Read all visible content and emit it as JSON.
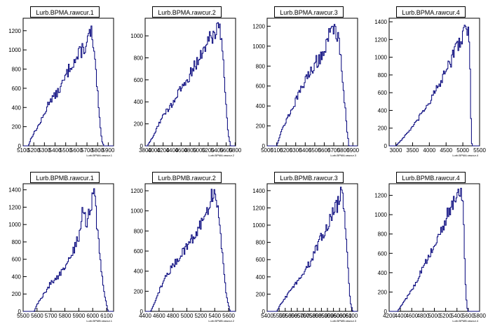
{
  "chart_data": [
    {
      "type": "histogram",
      "title": "Lurb.BPMA.rawcur.1",
      "xlabel": "Lurb.BPMA.rawcur.1",
      "xlim": [
        5100,
        5950
      ],
      "ylim": [
        0,
        1330
      ],
      "xticks": [
        5100,
        5200,
        5300,
        5400,
        5500,
        5600,
        5700,
        5800,
        5900
      ],
      "yticks": [
        0,
        200,
        400,
        600,
        800,
        1000,
        1200
      ],
      "profile": [
        [
          5150,
          0
        ],
        [
          5175,
          80
        ],
        [
          5200,
          130
        ],
        [
          5250,
          220
        ],
        [
          5300,
          330
        ],
        [
          5350,
          480
        ],
        [
          5400,
          520
        ],
        [
          5450,
          600
        ],
        [
          5500,
          720
        ],
        [
          5550,
          850
        ],
        [
          5600,
          900
        ],
        [
          5650,
          1000
        ],
        [
          5700,
          1050
        ],
        [
          5720,
          1150
        ],
        [
          5740,
          1200
        ],
        [
          5760,
          1000
        ],
        [
          5780,
          800
        ],
        [
          5800,
          550
        ],
        [
          5820,
          250
        ],
        [
          5840,
          50
        ],
        [
          5860,
          0
        ]
      ]
    },
    {
      "type": "histogram",
      "title": "Lurb.BPMA.rawcur.2",
      "xlabel": "Lurb.BPMA.rawcur.2",
      "xlim": [
        3800,
        5810
      ],
      "ylim": [
        0,
        1160
      ],
      "xticks": [
        3800,
        4000,
        4200,
        4400,
        4600,
        4800,
        5000,
        5200,
        5400,
        5600,
        5800
      ],
      "yticks": [
        0,
        200,
        400,
        600,
        800,
        1000
      ],
      "profile": [
        [
          3850,
          0
        ],
        [
          4000,
          100
        ],
        [
          4100,
          200
        ],
        [
          4200,
          270
        ],
        [
          4300,
          330
        ],
        [
          4400,
          380
        ],
        [
          4500,
          450
        ],
        [
          4600,
          520
        ],
        [
          4700,
          580
        ],
        [
          4800,
          650
        ],
        [
          4900,
          720
        ],
        [
          5000,
          800
        ],
        [
          5100,
          870
        ],
        [
          5200,
          950
        ],
        [
          5300,
          1010
        ],
        [
          5400,
          1060
        ],
        [
          5450,
          1080
        ],
        [
          5500,
          1000
        ],
        [
          5550,
          700
        ],
        [
          5600,
          350
        ],
        [
          5650,
          100
        ],
        [
          5700,
          0
        ]
      ]
    },
    {
      "type": "histogram",
      "title": "Lurb.BPMA.rawcur.3",
      "xlabel": "Lurb.BPMA.rawcur.3",
      "xlim": [
        5000,
        5950
      ],
      "ylim": [
        0,
        1280
      ],
      "xticks": [
        5000,
        5100,
        5200,
        5300,
        5400,
        5500,
        5600,
        5700,
        5800,
        5900
      ],
      "yticks": [
        0,
        200,
        400,
        600,
        800,
        1000,
        1200
      ],
      "profile": [
        [
          5100,
          0
        ],
        [
          5150,
          150
        ],
        [
          5200,
          250
        ],
        [
          5250,
          350
        ],
        [
          5300,
          450
        ],
        [
          5350,
          550
        ],
        [
          5400,
          650
        ],
        [
          5450,
          750
        ],
        [
          5500,
          820
        ],
        [
          5550,
          880
        ],
        [
          5600,
          950
        ],
        [
          5650,
          1100
        ],
        [
          5700,
          1180
        ],
        [
          5720,
          1150
        ],
        [
          5760,
          1050
        ],
        [
          5800,
          600
        ],
        [
          5840,
          150
        ],
        [
          5860,
          0
        ]
      ]
    },
    {
      "type": "histogram",
      "title": "Lurb.BPMA.rawcur.4",
      "xlabel": "Lurb.BPMA.rawcur.4",
      "xlim": [
        2800,
        5500
      ],
      "ylim": [
        0,
        1440
      ],
      "xticks": [
        3000,
        3500,
        4000,
        4500,
        5000,
        5500
      ],
      "yticks": [
        0,
        200,
        400,
        600,
        800,
        1000,
        1200,
        1400
      ],
      "profile": [
        [
          3000,
          0
        ],
        [
          3200,
          80
        ],
        [
          3400,
          170
        ],
        [
          3600,
          260
        ],
        [
          3800,
          380
        ],
        [
          4000,
          500
        ],
        [
          4200,
          620
        ],
        [
          4400,
          760
        ],
        [
          4600,
          920
        ],
        [
          4800,
          1100
        ],
        [
          5000,
          1260
        ],
        [
          5100,
          1330
        ],
        [
          5150,
          1340
        ],
        [
          5200,
          1200
        ],
        [
          5230,
          500
        ],
        [
          5260,
          50
        ],
        [
          5280,
          0
        ]
      ]
    },
    {
      "type": "histogram",
      "title": "Lurb.BPMB.rawcur.1",
      "xlabel": "Lurb.BPMB.rawcur.1",
      "xlim": [
        5500,
        6150
      ],
      "ylim": [
        0,
        1470
      ],
      "xticks": [
        5500,
        5600,
        5700,
        5800,
        5900,
        6000,
        6100
      ],
      "yticks": [
        0,
        200,
        400,
        600,
        800,
        1000,
        1200,
        1400
      ],
      "profile": [
        [
          5580,
          0
        ],
        [
          5600,
          80
        ],
        [
          5650,
          200
        ],
        [
          5700,
          330
        ],
        [
          5750,
          400
        ],
        [
          5800,
          500
        ],
        [
          5850,
          650
        ],
        [
          5900,
          850
        ],
        [
          5930,
          1200
        ],
        [
          5960,
          1000
        ],
        [
          5990,
          1250
        ],
        [
          6010,
          1400
        ],
        [
          6030,
          1000
        ],
        [
          6060,
          500
        ],
        [
          6090,
          150
        ],
        [
          6110,
          0
        ]
      ]
    },
    {
      "type": "histogram",
      "title": "Lurb.BPMB.rawcur.2",
      "xlabel": "Lurb.BPMB.rawcur.2",
      "xlim": [
        4400,
        5700
      ],
      "ylim": [
        0,
        1270
      ],
      "xticks": [
        4400,
        4600,
        4800,
        5000,
        5200,
        5400,
        5600
      ],
      "yticks": [
        0,
        200,
        400,
        600,
        800,
        1000,
        1200
      ],
      "profile": [
        [
          4480,
          0
        ],
        [
          4550,
          100
        ],
        [
          4600,
          200
        ],
        [
          4700,
          350
        ],
        [
          4800,
          450
        ],
        [
          4900,
          550
        ],
        [
          5000,
          650
        ],
        [
          5100,
          750
        ],
        [
          5200,
          850
        ],
        [
          5300,
          1000
        ],
        [
          5350,
          1150
        ],
        [
          5380,
          1180
        ],
        [
          5420,
          1100
        ],
        [
          5470,
          900
        ],
        [
          5520,
          500
        ],
        [
          5570,
          150
        ],
        [
          5620,
          0
        ]
      ]
    },
    {
      "type": "histogram",
      "title": "Lurb.BPMB.rawcur.3",
      "xlabel": "Lurb.BPMB.rawcur.3",
      "xlim": [
        5400,
        6150
      ],
      "ylim": [
        0,
        1480
      ],
      "xticks": [
        5400,
        5500,
        5550,
        5600,
        5650,
        5700,
        5750,
        5800,
        5850,
        5900,
        5950,
        6000,
        6050,
        6100
      ],
      "yticks": [
        0,
        200,
        400,
        600,
        800,
        1000,
        1200,
        1400
      ],
      "profile": [
        [
          5480,
          0
        ],
        [
          5520,
          100
        ],
        [
          5600,
          250
        ],
        [
          5650,
          350
        ],
        [
          5700,
          450
        ],
        [
          5750,
          550
        ],
        [
          5800,
          700
        ],
        [
          5850,
          850
        ],
        [
          5900,
          1000
        ],
        [
          5950,
          1150
        ],
        [
          6000,
          1300
        ],
        [
          6020,
          1400
        ],
        [
          6040,
          1200
        ],
        [
          6070,
          500
        ],
        [
          6090,
          100
        ],
        [
          6110,
          0
        ]
      ]
    },
    {
      "type": "histogram",
      "title": "Lurb.BPMB.rawcur.4",
      "xlabel": "Lurb.BPMB.rawcur.4",
      "xlim": [
        4200,
        5800
      ],
      "ylim": [
        0,
        1320
      ],
      "xticks": [
        4200,
        4400,
        4600,
        4800,
        5000,
        5200,
        5400,
        5600,
        5800
      ],
      "yticks": [
        0,
        200,
        400,
        600,
        800,
        1000,
        1200
      ],
      "profile": [
        [
          4350,
          0
        ],
        [
          4400,
          50
        ],
        [
          4500,
          130
        ],
        [
          4600,
          220
        ],
        [
          4700,
          330
        ],
        [
          4800,
          450
        ],
        [
          4900,
          560
        ],
        [
          5000,
          680
        ],
        [
          5100,
          800
        ],
        [
          5200,
          950
        ],
        [
          5300,
          1080
        ],
        [
          5400,
          1180
        ],
        [
          5450,
          1220
        ],
        [
          5500,
          1150
        ],
        [
          5530,
          700
        ],
        [
          5560,
          150
        ],
        [
          5590,
          0
        ]
      ]
    }
  ]
}
